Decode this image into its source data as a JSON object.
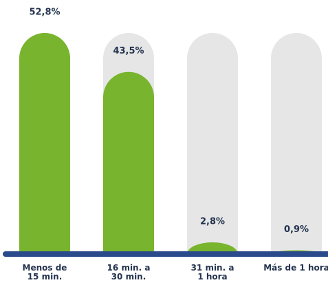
{
  "chart_data": {
    "type": "bar",
    "categories": [
      "Menos de 15 min.",
      "16 min. a 30 min.",
      "31 min. a 1 hora",
      "Más de 1 hora"
    ],
    "values": [
      52.8,
      43.5,
      2.8,
      0.9
    ],
    "value_labels": [
      "52,8%",
      "43,5%",
      "2,8%",
      "0,9%"
    ],
    "color": "#79b42e",
    "ylim": [
      0,
      52.8
    ]
  }
}
